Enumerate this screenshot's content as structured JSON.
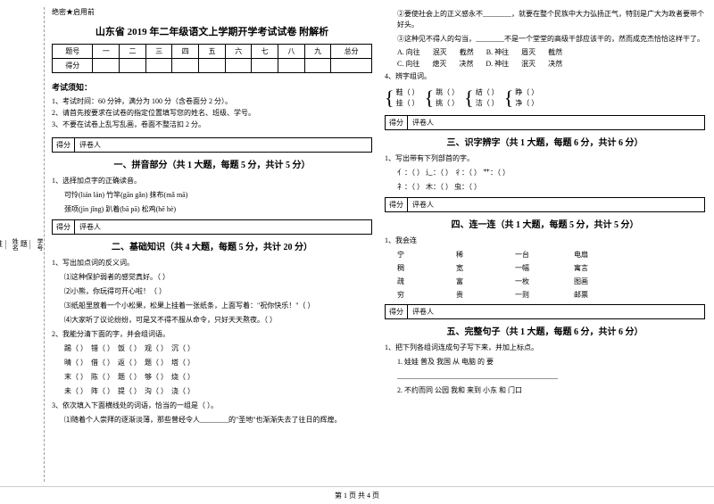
{
  "confidential": "绝密★启用前",
  "title": "山东省 2019 年二年级语文上学期开学考试试卷 附解析",
  "score_headers": [
    "题号",
    "一",
    "二",
    "三",
    "四",
    "五",
    "六",
    "七",
    "八",
    "九",
    "总分"
  ],
  "score_row_label": "得分",
  "notice_title": "考试须知：",
  "notices": [
    "1、考试时间：60 分钟，满分为 100 分（含卷面分 2 分）。",
    "2、请首先按要求在试卷的指定位置填写您的姓名、班级、学号。",
    "3、不要在试卷上乱写乱画，卷面不整洁扣 2 分。"
  ],
  "scorebox_labels": [
    "得分",
    "评卷人"
  ],
  "part1_title": "一、拼音部分（共 1 大题，每题 5 分，共计 5 分）",
  "part1_q": "1、选择加点字的正确读音。",
  "part1_items": [
    "可怜(lián  lán)        竹竿(gān  gǎn)           抹布(mǎ  mā)",
    "颈项(jìn  jǐng)        趴着(bā  pā)            松鸡(hē  hè)"
  ],
  "part2_title": "二、基础知识（共 4 大题，每题 5 分，共计 20 分）",
  "part2_q1": "1、写出加点词的反义词。",
  "part2_q1_items": [
    "⑴这种保护弱者的感觉真好。（        ）",
    "⑵小熊，你玩得可开心啦！（        ）",
    "⑶纸船里放着一个小松果，松果上挂着一张纸条，上面写着：\"祝你快乐！\"（        ）",
    "⑷大家听了议论纷纷，可是又不得不服从命令，只好天天熬夜。（        ）"
  ],
  "part2_q2": "2、我能分清下面的字，并会组词语。",
  "part2_q2_rows": [
    [
      "踢（     ）",
      "错（     ）",
      "饭（     ）",
      "观（     ）",
      "沉（     ）"
    ],
    [
      "晴（     ）",
      "借（     ）",
      "返（     ）",
      "题（     ）",
      "塔（     ）"
    ],
    [
      "末（     ）",
      "陈（     ）",
      "题（     ）",
      "够（     ）",
      "烧（     ）"
    ],
    [
      "未（     ）",
      "阵（     ）",
      "提（     ）",
      "沟（     ）",
      "浇（     ）"
    ]
  ],
  "part2_q3": "3、依次填入下面横线处的词语，恰当的一组是（     ）。",
  "part2_q3_line": "⑴随着个人崇拜的逐渐淡薄，那些曾经令人________的\"圣地\"也渐渐失去了往日的辉煌。",
  "col2_top": [
    "②要使社会上的正义感永不________，就要在整个民族中大力弘扬正气，特别是广大为政者要带个好头。",
    "③这种见不得人的勾当，________不是一个堂堂的高级干部应该干的，然而成克杰恰恰这样干了。"
  ],
  "col2_options": [
    [
      "A. 向往",
      "泯灭",
      "截然"
    ],
    [
      "B. 神往",
      "眉灭",
      "截然"
    ],
    [
      "C. 向往",
      "熄灭",
      "决然"
    ],
    [
      "D. 神往",
      "泯灭",
      "决然"
    ]
  ],
  "col2_q4": "4、辨字组词。",
  "brace_pairs1": [
    [
      "鞋",
      "挂"
    ],
    [
      "跳",
      "挑"
    ],
    [
      "结",
      "洁"
    ],
    [
      "睁",
      "净"
    ]
  ],
  "part3_title": "三、识字辨字（共 1 大题，每题 6 分，共计 6 分）",
  "part3_q": "1、写出带有下列部首的字。",
  "part3_items": [
    "亻：（     ）        辶：（     ）        彳：（     ）        艹：（     ）",
    "礻：（     ）        木：（     ）        虫：（     ）"
  ],
  "part4_title": "四、连一连（共 1 大题，每题 5 分，共计 5 分）",
  "part4_q": "1、我会连",
  "connect_rows": [
    [
      "宁",
      "稀",
      "一台",
      "电扇"
    ],
    [
      "稠",
      "宽",
      "一幅",
      "寓言"
    ],
    [
      "疏",
      "富",
      "一枚",
      "图画"
    ],
    [
      "穷",
      "贵",
      "一则",
      "邮票"
    ]
  ],
  "part5_title": "五、完整句子（共 1 大题，每题 6 分，共计 6 分）",
  "part5_q": "1、把下列各组词连成句子写下来，并加上标点。",
  "part5_items": [
    "1. 娃娃    普及    我国    从    电脑    的    要",
    "_____________________________________________",
    "2. 不约而同    公园    我和    来到    小东    和    门口"
  ],
  "left_labels": [
    "学号",
    "姓名",
    "班级",
    "学校",
    "乡镇(街道)"
  ],
  "left_hints": [
    "题",
    "答",
    "准",
    "不",
    "内",
    "线",
    "封",
    "密"
  ],
  "footer": "第 1 页 共 4 页"
}
